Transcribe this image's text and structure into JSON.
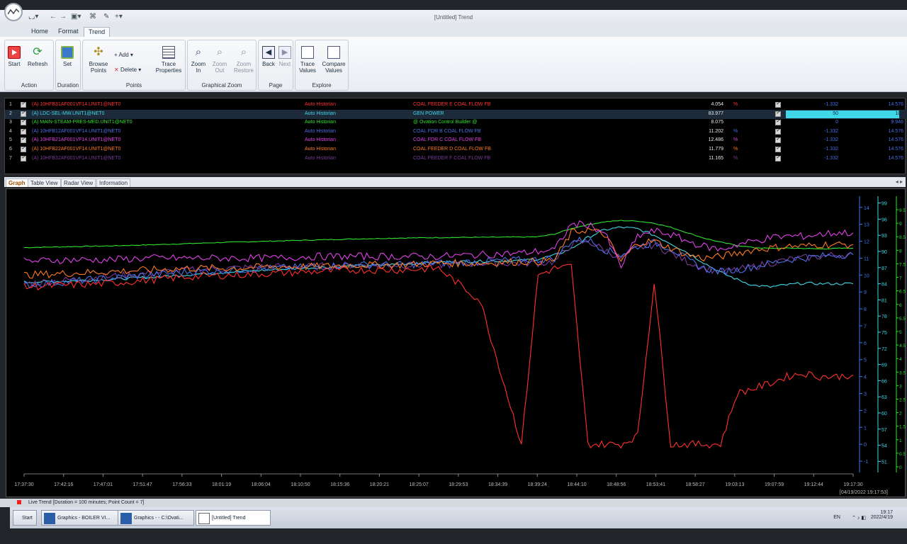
{
  "window": {
    "title": "[Untitled] Trend"
  },
  "ribbon": {
    "tabs": [
      "Home",
      "Format",
      "Trend"
    ],
    "action": {
      "label": "Action",
      "start": "Start",
      "refresh": "Refresh"
    },
    "duration": {
      "label": "Duration",
      "set": "Set"
    },
    "points": {
      "label": "Points",
      "browse": "Browse Points",
      "add": "Add",
      "delete": "Delete",
      "trace_props": "Trace Properties"
    },
    "gzoom": {
      "label": "Graphical Zoom",
      "zoom_in": "Zoom In",
      "zoom_out": "Zoom Out",
      "zoom_restore": "Zoom Restore"
    },
    "page": {
      "label": "Page",
      "back": "Back",
      "next": "Next"
    },
    "explore": {
      "label": "Explore",
      "trace_values": "Trace Values",
      "compare_values": "Compare Values"
    }
  },
  "legend": [
    {
      "n": "1",
      "point": "(A) 10HFB31AF001VF14.UNIT1@NET0",
      "src": "Auto Historian",
      "desc": "COAL FEEDER E COAL FLOW FB",
      "value": "4.054",
      "unit": "%",
      "min": "-1.332",
      "max": "14.576",
      "color": "#ff3030"
    },
    {
      "n": "2",
      "point": "(A) LDC-SEL-MW.UNIT1@NET0",
      "src": "Auto Historian",
      "desc": "GEN POWER",
      "value": "83.977",
      "unit": "",
      "min": "50",
      "max": "100",
      "color": "#40d8e8"
    },
    {
      "n": "3",
      "point": "(A) MAIN-STEAM-PRES-MED.UNIT1@NET0",
      "src": "Auto Historian",
      "desc": "@ Ovation Control Builder @",
      "value": "8.075",
      "unit": "",
      "min": "0",
      "max": "9.946",
      "color": "#30e030"
    },
    {
      "n": "4",
      "point": "(A) 10HFB12AF001VF14.UNIT1@NET0",
      "src": "Auto Historian",
      "desc": "COAL FDR B COAL FLOW FB",
      "value": "11.202",
      "unit": "%",
      "min": "-1.332",
      "max": "14.576",
      "color": "#4a70e8"
    },
    {
      "n": "5",
      "point": "(A) 10HFB21AF001VF14.UNIT1@NET0",
      "src": "Auto Historian",
      "desc": "COAL FDR C COAL FLOW FB",
      "value": "12.486",
      "unit": "%",
      "min": "-1.332",
      "max": "14.576",
      "color": "#e040e8"
    },
    {
      "n": "6",
      "point": "(A) 10HFB22AF001VF14.UNIT1@NET0",
      "src": "Auto Historian",
      "desc": "COAL FEEDER D COAL FLOW FB",
      "value": "11.779",
      "unit": "%",
      "min": "-1.332",
      "max": "14.576",
      "color": "#ff7a20"
    },
    {
      "n": "7",
      "point": "(A) 10HFB32AF001VF14.UNIT1@NET0",
      "src": "Auto Historian",
      "desc": "COAL FEEDER F COAL FLOW FB",
      "value": "11.165",
      "unit": "%",
      "min": "-1.332",
      "max": "14.576",
      "color": "#7a3a9a"
    }
  ],
  "graph_tabs": [
    "Graph",
    "Table View",
    "Radar View",
    "Information"
  ],
  "axes": {
    "left_ticks": [
      "14",
      "13",
      "12",
      "11",
      "10",
      "9",
      "8",
      "7",
      "6",
      "5",
      "4",
      "3",
      "2",
      "1",
      "0",
      "-1"
    ],
    "mid_ticks": [
      "99",
      "96",
      "93",
      "90",
      "87",
      "84",
      "81",
      "78",
      "75",
      "72",
      "69",
      "66",
      "63",
      "60",
      "57",
      "54",
      "51"
    ],
    "right_ticks": [
      "9.5",
      "9",
      "8.5",
      "8",
      "7.5",
      "7",
      "6.5",
      "6",
      "5.5",
      "5",
      "4.5",
      "4",
      "3.5",
      "3",
      "2.5",
      "2",
      "1.5",
      "1",
      "0.5",
      "0"
    ],
    "time_ticks": [
      "17:37:30",
      "17:42:16",
      "17:47:01",
      "17:51:47",
      "17:56:33",
      "18:01:19",
      "18:06:04",
      "18:10:50",
      "18:15:36",
      "18:20:21",
      "18:25:07",
      "18:29:53",
      "18:34:39",
      "18:39:24",
      "18:44:10",
      "18:48:56",
      "18:53:41",
      "18:58:27",
      "19:03:13",
      "19:07:59",
      "19:12:44",
      "19:17:30"
    ],
    "end_stamp": "[04/19/2022 19:17:53]"
  },
  "chart_data": {
    "type": "line",
    "x_range": [
      "17:37:30",
      "19:17:30"
    ],
    "x_minutes": [
      0,
      5,
      10,
      15,
      20,
      25,
      30,
      35,
      40,
      45,
      50,
      55,
      60,
      62,
      64,
      66,
      68,
      70,
      72,
      74,
      76,
      78,
      80,
      82,
      84,
      86,
      88,
      90,
      92,
      94,
      96,
      98,
      100
    ],
    "series": [
      {
        "name": "COAL FEEDER E COAL FLOW FB",
        "axis": "pct",
        "values": [
          9.3,
          9.4,
          9.5,
          9.7,
          9.9,
          10,
          10.1,
          10.2,
          10.3,
          10.3,
          10.4,
          8.5,
          0,
          10,
          10.4,
          10.5,
          0,
          0,
          0,
          0.5,
          9.6,
          0,
          0,
          0,
          0,
          3,
          3.3,
          3.6,
          4,
          4.2,
          4,
          4,
          4.1
        ]
      },
      {
        "name": "GEN POWER",
        "axis": "mw",
        "values": [
          84.3,
          84.5,
          84.8,
          85.2,
          85.7,
          86.2,
          86.6,
          87,
          87.3,
          87.6,
          88,
          88.2,
          88.3,
          88.6,
          89.3,
          90.5,
          92.6,
          94,
          94.5,
          94.2,
          93,
          91.5,
          89.8,
          87.9,
          86.1,
          84.8,
          83.7,
          83.4,
          83.8,
          84.1,
          84,
          84,
          84
        ]
      },
      {
        "name": "@ Ovation Control Builder @",
        "axis": "press",
        "values": [
          8.1,
          8.13,
          8.16,
          8.2,
          8.25,
          8.3,
          8.34,
          8.38,
          8.42,
          8.45,
          8.47,
          8.48,
          8.49,
          8.5,
          8.6,
          8.8,
          8.95,
          9.05,
          9.1,
          9.08,
          9,
          8.85,
          8.65,
          8.45,
          8.3,
          8.18,
          8.1,
          8.07,
          8.08,
          8.07,
          8.05,
          8.07,
          8.08
        ]
      },
      {
        "name": "COAL FDR B COAL FLOW FB",
        "axis": "pct",
        "values": [
          9.4,
          9.6,
          9.8,
          10,
          10.2,
          10.3,
          10.4,
          10.5,
          10.6,
          10.6,
          10.7,
          10.8,
          10.9,
          10.9,
          11,
          12,
          12.1,
          11.5,
          11.2,
          11.7,
          11.9,
          11.6,
          10.9,
          10.4,
          10.2,
          10.3,
          10.5,
          10.7,
          10.9,
          11,
          11.1,
          11.2,
          11.2
        ]
      },
      {
        "name": "COAL FDR C COAL FLOW FB",
        "axis": "pct",
        "values": [
          10.8,
          10.9,
          10.9,
          11,
          11,
          11,
          11,
          11.1,
          11.1,
          11.1,
          11.1,
          11.2,
          11.3,
          11.4,
          11.5,
          13,
          13,
          12.5,
          10.5,
          12.3,
          12.6,
          12.4,
          12,
          11.7,
          11.5,
          11.8,
          12,
          12.2,
          12.3,
          12.3,
          12.4,
          12.5,
          12.5
        ]
      },
      {
        "name": "COAL FEEDER D COAL FLOW FB",
        "axis": "pct",
        "values": [
          10,
          10.1,
          10.2,
          10.3,
          10.4,
          10.4,
          10.5,
          10.5,
          10.6,
          10.6,
          10.7,
          10.7,
          10.8,
          10.8,
          10.9,
          12.5,
          12.7,
          12.4,
          10.8,
          11.9,
          12,
          11.6,
          11.2,
          11,
          11.1,
          11.3,
          11.5,
          11.6,
          11.7,
          11.7,
          11.8,
          11.8,
          11.8
        ]
      },
      {
        "name": "COAL FEEDER F COAL FLOW FB",
        "axis": "pct",
        "values": [
          9.5,
          9.7,
          9.9,
          10.1,
          10.3,
          10.4,
          10.5,
          10.5,
          10.6,
          10.6,
          10.6,
          10.7,
          10.7,
          10.7,
          10.8,
          11.8,
          12,
          11.5,
          11,
          11.6,
          11.8,
          11.3,
          10.8,
          10.4,
          10.2,
          10.3,
          10.5,
          10.7,
          10.9,
          11,
          11.1,
          11.2,
          11.2
        ]
      }
    ],
    "axes_ranges": {
      "pct": [
        -1.332,
        14.576
      ],
      "mw": [
        50,
        100
      ],
      "press": [
        0,
        9.946
      ]
    }
  },
  "status": {
    "text": "Live Trend [Duration = 100 minutes; Point Count = 7]"
  },
  "taskbar": {
    "start": "Start",
    "items": [
      "Graphics - BOILER VI...",
      "Graphics - - C:\\Ovati...",
      "[Untitled] Trend"
    ],
    "lang": "EN",
    "time": "19:17",
    "date": "2022/4/19"
  }
}
